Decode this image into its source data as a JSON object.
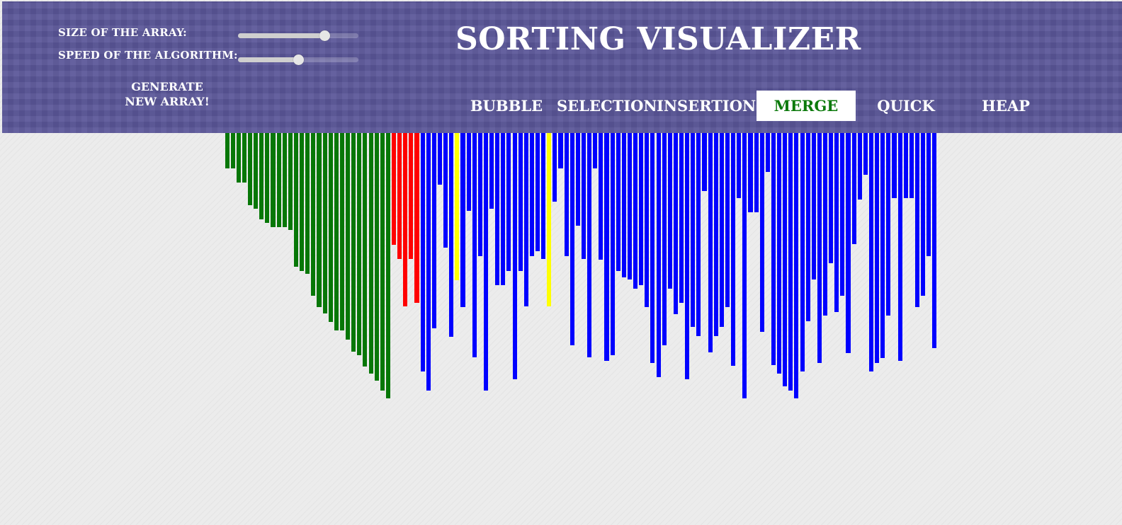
{
  "header": {
    "size_label": "SIZE OF THE ARRAY:",
    "speed_label": "SPEED OF THE ALGORITHM:",
    "generate_label": "GENERATE NEW ARRAY!",
    "title": "SORTING VISUALIZER"
  },
  "controls": {
    "size_slider_value": 0.72,
    "speed_slider_value": 0.5
  },
  "algorithms": [
    {
      "label": "BUBBLE",
      "active": false
    },
    {
      "label": "SELECTION",
      "active": false
    },
    {
      "label": "INSERTION",
      "active": false
    },
    {
      "label": "MERGE",
      "active": true
    },
    {
      "label": "QUICK",
      "active": false
    },
    {
      "label": "HEAP",
      "active": false
    }
  ],
  "colors": {
    "header_bg": "#5a5698",
    "sorted": "#077707",
    "comparing": "#ff0000",
    "pivot": "#ffff00",
    "unsorted": "#0000ff",
    "active_button_text": "#0c7a0c"
  },
  "array": {
    "max": 375,
    "values": [
      50,
      50,
      70,
      70,
      102,
      107,
      122,
      127,
      133,
      133,
      133,
      137,
      189,
      195,
      199,
      230,
      246,
      255,
      267,
      279,
      279,
      292,
      309,
      314,
      330,
      340,
      350,
      364,
      375,
      158,
      178,
      245,
      178,
      240,
      337,
      364,
      276,
      73,
      162,
      288,
      208,
      246,
      110,
      317,
      174,
      364,
      107,
      215,
      215,
      195,
      348,
      195,
      245,
      174,
      167,
      178,
      245,
      97,
      50,
      174,
      300,
      131,
      178,
      317,
      50,
      179,
      322,
      314,
      195,
      204,
      207,
      220,
      215,
      246,
      325,
      345,
      300,
      220,
      256,
      240,
      348,
      274,
      287,
      82,
      310,
      287,
      274,
      246,
      329,
      92,
      375,
      112,
      112,
      281,
      55,
      328,
      340,
      358,
      364,
      375,
      337,
      266,
      207,
      325,
      258,
      184,
      253,
      230,
      311,
      157,
      94,
      59,
      337,
      325,
      318,
      258,
      92,
      322,
      92,
      92,
      246,
      230,
      174,
      304
    ],
    "states": [
      "s",
      "s",
      "s",
      "s",
      "s",
      "s",
      "s",
      "s",
      "s",
      "s",
      "s",
      "s",
      "s",
      "s",
      "s",
      "s",
      "s",
      "s",
      "s",
      "s",
      "s",
      "s",
      "s",
      "s",
      "s",
      "s",
      "s",
      "s",
      "s",
      "c",
      "c",
      "c",
      "c",
      "c",
      "u",
      "u",
      "u",
      "u",
      "u",
      "u",
      "y",
      "u",
      "u",
      "u",
      "u",
      "u",
      "u",
      "u",
      "u",
      "u",
      "u",
      "u",
      "u",
      "u",
      "u",
      "u",
      "y",
      "u",
      "u",
      "u",
      "u",
      "u",
      "u",
      "u",
      "u",
      "u",
      "u",
      "u",
      "u",
      "u",
      "u",
      "u",
      "u",
      "u",
      "u",
      "u",
      "u",
      "u",
      "u",
      "u",
      "u",
      "u",
      "u",
      "u",
      "u",
      "u",
      "u",
      "u",
      "u",
      "u",
      "u",
      "u",
      "u",
      "u",
      "u",
      "u",
      "u",
      "u",
      "u",
      "u",
      "u",
      "u",
      "u",
      "u",
      "u",
      "u",
      "u",
      "u",
      "u",
      "u",
      "u",
      "u",
      "u",
      "u",
      "u",
      "u",
      "u",
      "u",
      "u",
      "u",
      "u",
      "u",
      "u",
      "u"
    ]
  }
}
